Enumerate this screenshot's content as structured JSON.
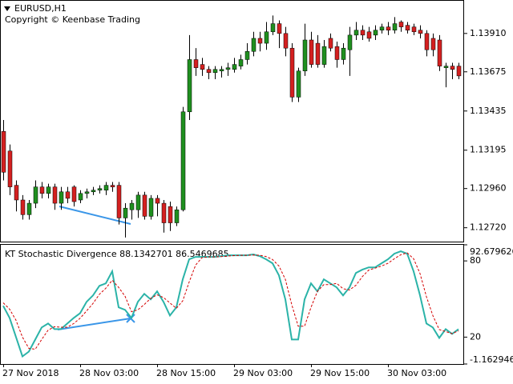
{
  "chart_data": [
    {
      "type": "candlestick",
      "title": "EURUSD,H1",
      "subtitle": "Copyright © Keenbase Trading",
      "categories": [
        "27 Nov 2018",
        null,
        null,
        null,
        null,
        null,
        null,
        null,
        null,
        null,
        null,
        null,
        "28 Nov 03:00",
        null,
        null,
        null,
        null,
        null,
        null,
        null,
        null,
        null,
        null,
        null,
        "28 Nov 15:00",
        null,
        null,
        null,
        null,
        null,
        null,
        null,
        null,
        null,
        null,
        null,
        "29 Nov 03:00",
        null,
        null,
        null,
        null,
        null,
        null,
        null,
        null,
        null,
        null,
        null,
        "29 Nov 15:00",
        null,
        null,
        null,
        null,
        null,
        null,
        null,
        null,
        null,
        null,
        null,
        "30 Nov 03:00",
        null,
        null,
        null,
        null,
        null,
        null,
        null,
        null,
        null,
        null,
        null
      ],
      "open": [
        1.1331,
        1.1319,
        1.1298,
        1.1289,
        1.128,
        1.1287,
        1.1297,
        1.1293,
        1.1297,
        1.1287,
        1.1294,
        1.1297,
        1.1289,
        1.1293,
        1.1294,
        1.1295,
        1.1295,
        1.1298,
        1.1298,
        1.1278,
        1.1283,
        1.1283,
        1.1292,
        1.1279,
        1.129,
        1.1287,
        1.1285,
        1.1275,
        1.1283,
        1.1343,
        1.1375,
        1.1372,
        1.1369,
        1.1367,
        1.1368,
        1.1369,
        1.1369,
        1.1371,
        1.1375,
        1.138,
        1.1388,
        1.1385,
        1.1392,
        1.1397,
        1.1391,
        1.1382,
        1.1352,
        1.1368,
        1.1387,
        1.1385,
        1.1372,
        1.1388,
        1.1383,
        1.1375,
        1.1381,
        1.139,
        1.1393,
        1.1392,
        1.139,
        1.1393,
        1.1395,
        1.1393,
        1.1398,
        1.1396,
        1.1395,
        1.1393,
        1.1391,
        1.1388,
        1.1387,
        1.137,
        1.1371,
        1.1371
      ],
      "high": [
        1.1338,
        1.1323,
        1.1301,
        1.1292,
        1.1289,
        1.1301,
        1.13,
        1.1299,
        1.1299,
        1.1297,
        1.1297,
        1.1298,
        1.1295,
        1.1296,
        1.1297,
        1.1298,
        1.13,
        1.13,
        1.13,
        1.1287,
        1.1289,
        1.1294,
        1.1294,
        1.1292,
        1.1292,
        1.1289,
        1.1288,
        1.1285,
        1.1346,
        1.139,
        1.1382,
        1.1376,
        1.1371,
        1.1371,
        1.1371,
        1.1373,
        1.1376,
        1.1378,
        1.1385,
        1.1392,
        1.1392,
        1.1398,
        1.1402,
        1.1399,
        1.1395,
        1.1385,
        1.137,
        1.1397,
        1.1392,
        1.139,
        1.1387,
        1.1391,
        1.1386,
        1.1385,
        1.1395,
        1.1398,
        1.1396,
        1.1395,
        1.1396,
        1.1397,
        1.1398,
        1.1401,
        1.1399,
        1.1398,
        1.1397,
        1.1396,
        1.1393,
        1.1391,
        1.139,
        1.1373,
        1.1373,
        1.1373
      ],
      "low": [
        1.1301,
        1.1292,
        1.1282,
        1.1277,
        1.1277,
        1.1284,
        1.129,
        1.129,
        1.1283,
        1.1283,
        1.1287,
        1.1285,
        1.1287,
        1.129,
        1.1292,
        1.1293,
        1.1292,
        1.1294,
        1.1274,
        1.1266,
        1.1277,
        1.1278,
        1.1277,
        1.1277,
        1.1279,
        1.1269,
        1.127,
        1.1273,
        1.1282,
        1.1338,
        1.1365,
        1.1365,
        1.1363,
        1.1363,
        1.1364,
        1.1365,
        1.1367,
        1.1369,
        1.1372,
        1.1377,
        1.138,
        1.1381,
        1.139,
        1.1382,
        1.1377,
        1.1349,
        1.1349,
        1.1365,
        1.137,
        1.137,
        1.137,
        1.138,
        1.137,
        1.1372,
        1.1365,
        1.1387,
        1.1387,
        1.1386,
        1.1387,
        1.1391,
        1.139,
        1.1391,
        1.1392,
        1.1391,
        1.139,
        1.1388,
        1.1377,
        1.1377,
        1.1368,
        1.1358,
        1.1363,
        1.1363
      ],
      "close": [
        1.1306,
        1.1297,
        1.1289,
        1.128,
        1.1287,
        1.1297,
        1.1293,
        1.1297,
        1.1287,
        1.1294,
        1.129,
        1.1288,
        1.1293,
        1.1294,
        1.1295,
        1.1296,
        1.1298,
        1.1297,
        1.1278,
        1.1284,
        1.1287,
        1.1292,
        1.1279,
        1.129,
        1.1287,
        1.1275,
        1.1275,
        1.1283,
        1.1343,
        1.1375,
        1.137,
        1.1369,
        1.1367,
        1.1369,
        1.1369,
        1.137,
        1.1372,
        1.1375,
        1.138,
        1.1388,
        1.1385,
        1.1392,
        1.1397,
        1.1391,
        1.1382,
        1.1352,
        1.1368,
        1.1387,
        1.1372,
        1.1372,
        1.1383,
        1.1382,
        1.1375,
        1.1382,
        1.139,
        1.1393,
        1.139,
        1.1388,
        1.1393,
        1.1395,
        1.1393,
        1.1397,
        1.1395,
        1.1393,
        1.1392,
        1.1391,
        1.1381,
        1.1381,
        1.1371,
        1.1371,
        1.1369,
        1.1365
      ],
      "up_color": "#1f8f1f",
      "down_color": "#d42020",
      "ylim": [
        1.1264,
        1.1411
      ],
      "yticks": [
        {
          "value": 1.1391,
          "label": "1.13910"
        },
        1.13675,
        1.13435,
        1.13195,
        {
          "value": 1.1296,
          "label": "1.12960"
        },
        {
          "value": 1.1272,
          "label": "1.12720"
        }
      ]
    },
    {
      "type": "line",
      "title": "KT Stochastic Divergence 88.1342701 86.5469685",
      "series": [
        {
          "color": "#2bb3a8",
          "values": [
            44.6,
            35.1,
            20.0,
            4.8,
            8.6,
            18.1,
            27.6,
            30.7,
            26.3,
            26.3,
            30.7,
            35.1,
            38.9,
            47.8,
            52.8,
            60.4,
            62.3,
            71.8,
            43.4,
            41.5,
            35.1,
            47.8,
            54.1,
            49.7,
            56.0,
            47.8,
            37.0,
            43.4,
            65.5,
            81.3,
            83.2,
            83.2,
            83.2,
            83.2,
            83.8,
            84.4,
            84.4,
            84.4,
            84.4,
            85.1,
            83.8,
            81.3,
            78.1,
            68.6,
            49.7,
            18.1,
            18.1,
            49.7,
            62.3,
            56.0,
            65.5,
            62.3,
            59.2,
            52.8,
            59.2,
            70.5,
            73.1,
            74.9,
            74.9,
            78.1,
            81.3,
            85.7,
            87.6,
            85.7,
            71.8,
            52.8,
            30.7,
            27.6,
            19.4,
            26.3,
            22.5,
            26.3
          ]
        },
        {
          "color": "#d40000",
          "dashed": true,
          "values": [
            47.0,
            42.0,
            33.2,
            20.0,
            11.1,
            10.5,
            18.1,
            25.5,
            28.2,
            27.8,
            27.8,
            30.7,
            34.9,
            40.6,
            46.5,
            53.7,
            58.5,
            64.8,
            59.2,
            52.2,
            40.0,
            41.5,
            45.7,
            50.5,
            53.3,
            51.2,
            46.9,
            42.7,
            48.6,
            63.4,
            76.7,
            82.6,
            83.2,
            83.2,
            83.4,
            83.8,
            84.2,
            84.4,
            84.4,
            84.6,
            84.4,
            83.4,
            81.1,
            76.0,
            65.5,
            45.5,
            28.6,
            28.6,
            43.4,
            56.0,
            61.3,
            61.3,
            62.3,
            58.1,
            57.1,
            60.8,
            67.6,
            72.8,
            74.3,
            76.0,
            78.1,
            81.7,
            84.9,
            86.3,
            81.7,
            70.1,
            51.8,
            37.0,
            25.9,
            24.4,
            22.7,
            25.0
          ]
        }
      ],
      "ylim": [
        -1.1629462,
        92.679626
      ],
      "yticks": [
        92.679626,
        80,
        20,
        -1.1629462
      ]
    }
  ]
}
